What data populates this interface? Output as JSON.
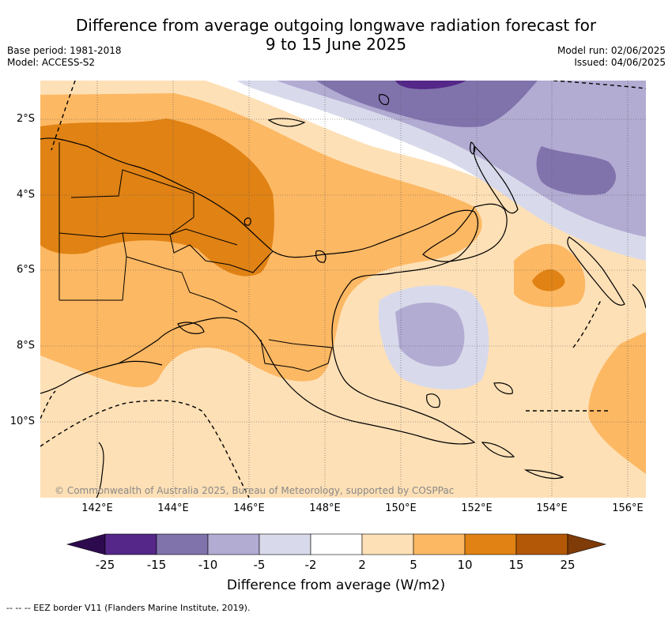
{
  "title_line1": "Difference from average outgoing longwave radiation forecast for",
  "title_line2": "9 to 15 June 2025",
  "base_period": "Base period: 1981-2018",
  "model": "Model: ACCESS-S2",
  "model_run": "Model run: 02/06/2025",
  "issued": "Issued: 04/06/2025",
  "lat_labels": [
    "2°S",
    "4°S",
    "6°S",
    "8°S",
    "10°S"
  ],
  "lon_labels": [
    "142°E",
    "144°E",
    "146°E",
    "148°E",
    "150°E",
    "152°E",
    "154°E",
    "156°E"
  ],
  "copyright": "© Commonwealth of Australia 2025, Bureau of Meteorology, supported by COSPPac",
  "colorbar": {
    "ticks": [
      "-25",
      "-15",
      "-10",
      "-5",
      "-2",
      "2",
      "5",
      "10",
      "15",
      "25"
    ],
    "colors": {
      "below_-25": "#2d0a4e",
      "-25_-15": "#542788",
      "-15_-10": "#8073ac",
      "-10_-5": "#b2abd2",
      "-5_-2": "#d8daeb",
      "-2_2": "#ffffff",
      "2_5": "#fee0b6",
      "5_10": "#fdb863",
      "10_15": "#e08214",
      "15_25": "#b35806",
      "above_25": "#7f3b08"
    },
    "label": "Difference from average (W/m2)"
  },
  "footnote": "--  --  -- EEZ border V11 (Flanders Marine Institute, 2019)."
}
